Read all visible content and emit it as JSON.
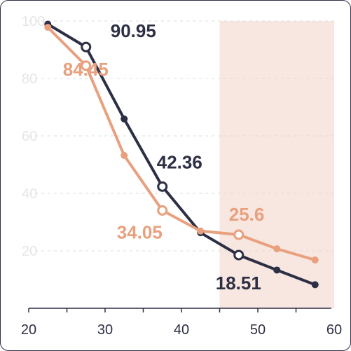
{
  "chart_data": {
    "type": "line",
    "title": "",
    "xlabel": "",
    "ylabel": "",
    "xlim": [
      20,
      60
    ],
    "ylim": [
      0,
      100
    ],
    "x_ticks": [
      "20",
      "30",
      "40",
      "50",
      "60"
    ],
    "y_ticks": [
      "20",
      "40",
      "60",
      "80",
      "100"
    ],
    "grid": "horizontal-dashed",
    "highlight_range": [
      45,
      60
    ],
    "highlight_color": "#f8e6e0",
    "series": [
      {
        "color": "#2d2f45",
        "points": [
          {
            "x": 22.5,
            "y": 98.9
          },
          {
            "x": 27.5,
            "y": 90.95,
            "label": "90.95",
            "hollow": true
          },
          {
            "x": 32.5,
            "y": 65.9
          },
          {
            "x": 37.5,
            "y": 42.36,
            "label": "42.36",
            "hollow": true
          },
          {
            "x": 42.5,
            "y": 26.3
          },
          {
            "x": 47.5,
            "y": 18.51,
            "label": "18.51",
            "hollow": true
          },
          {
            "x": 52.5,
            "y": 13.3
          },
          {
            "x": 57.5,
            "y": 8.2
          }
        ]
      },
      {
        "color": "#e8a07e",
        "points": [
          {
            "x": 22.5,
            "y": 97.8
          },
          {
            "x": 27.5,
            "y": 84.45,
            "label": "84.45",
            "hollow": true
          },
          {
            "x": 32.5,
            "y": 53.2
          },
          {
            "x": 37.5,
            "y": 34.05,
            "label": "34.05",
            "hollow": true
          },
          {
            "x": 42.5,
            "y": 26.9
          },
          {
            "x": 47.5,
            "y": 25.6,
            "label": "25.6",
            "hollow": true
          },
          {
            "x": 52.5,
            "y": 20.7
          },
          {
            "x": 57.5,
            "y": 16.8
          }
        ]
      }
    ]
  }
}
